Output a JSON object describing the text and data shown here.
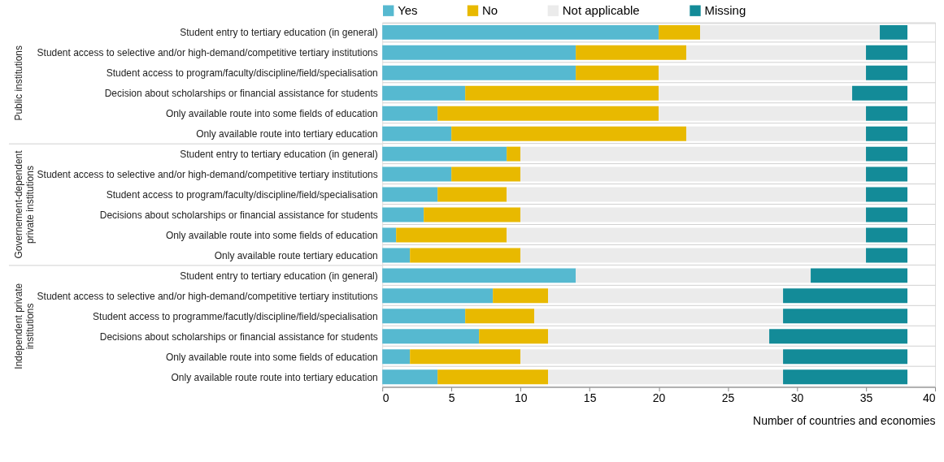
{
  "chart_data": {
    "type": "bar",
    "orientation": "horizontal",
    "stacked": true,
    "categories": [
      "Student entry to tertiary education (in general)",
      "Student access to selective and/or high-demand/competitive tertiary institutions",
      "Student access to program/faculty/discipline/field/specialisation",
      "Decision about scholarships or financial assistance for students",
      "Only available route into some fields of education",
      "Only available route into tertiary education",
      "Student entry to tertiary education (in general)",
      "Student access to selective and/or high-demand/competitive tertiary institutions",
      "Student access to program/faculty/discipline/field/specialisation",
      "Decisions about scholarships or financial assistance for students",
      "Only available route into some fields of education",
      "Only available route tertiary education",
      "Student entry to tertiary education (in general)",
      "Student access to selective and/or high-demand/competitive tertiary institutions",
      "Student access to programme/facutly/discipline/field/specialisation",
      "Decisions about scholarships or financial assistance for students",
      "Only available route into some fields of education",
      "Only available route route into tertiary education"
    ],
    "series": [
      {
        "name": "Yes",
        "color": "#56b9d0",
        "values": [
          20,
          14,
          14,
          6,
          4,
          5,
          9,
          5,
          4,
          3,
          1,
          2,
          14,
          8,
          6,
          7,
          2,
          4
        ]
      },
      {
        "name": "No",
        "color": "#e8b900",
        "values": [
          3,
          8,
          6,
          14,
          16,
          17,
          1,
          5,
          5,
          7,
          8,
          8,
          0,
          4,
          5,
          5,
          8,
          8
        ]
      },
      {
        "name": "Not applicable",
        "color": "#ebebeb",
        "values": [
          13,
          13,
          15,
          14,
          15,
          13,
          25,
          25,
          26,
          25,
          26,
          25,
          17,
          17,
          18,
          16,
          19,
          17
        ]
      },
      {
        "name": "Missing",
        "color": "#138b98",
        "values": [
          2,
          3,
          3,
          4,
          3,
          3,
          3,
          3,
          3,
          3,
          3,
          3,
          7,
          9,
          9,
          10,
          9,
          9
        ]
      }
    ],
    "xlim": [
      0,
      40
    ],
    "xticks": [
      0,
      5,
      10,
      15,
      20,
      25,
      30,
      35,
      40
    ],
    "xlabel": "Number of countries and economies",
    "annotations": [
      "Public institutions",
      "Governement-dependent private institutions",
      "Independent private institutions"
    ],
    "legend": "top",
    "grid": "y"
  }
}
